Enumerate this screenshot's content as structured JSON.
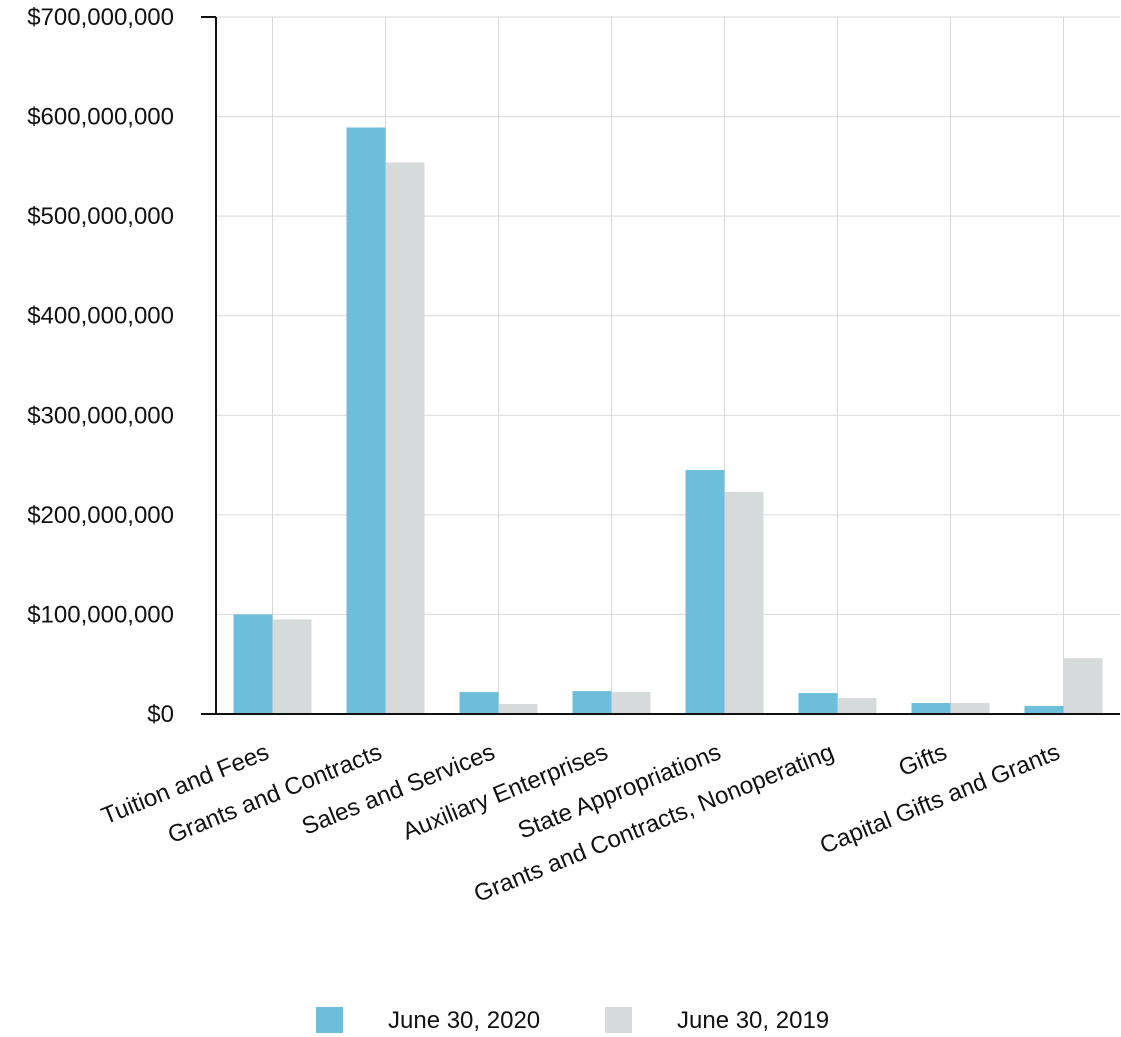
{
  "chart_data": {
    "type": "bar",
    "categories": [
      "Tuition and Fees",
      "Grants and Contracts",
      "Sales and Services",
      "Auxiliary Enterprises",
      "State Appropriations",
      "Grants and Contracts, Nonoperating",
      "Gifts",
      "Capital Gifts and Grants"
    ],
    "series": [
      {
        "name": "June 30, 2020",
        "color": "#6dbedb",
        "values": [
          100000000,
          589000000,
          22000000,
          23000000,
          245000000,
          21000000,
          11000000,
          8000000
        ]
      },
      {
        "name": "June 30, 2019",
        "color": "#d7dadb",
        "values": [
          95000000,
          554000000,
          10000000,
          22000000,
          223000000,
          16000000,
          11000000,
          56000000
        ]
      }
    ],
    "y_ticks": [
      "$0",
      "$100,000,000",
      "$200,000,000",
      "$300,000,000",
      "$400,000,000",
      "$500,000,000",
      "$600,000,000",
      "$700,000,000"
    ],
    "y_tick_values": [
      0,
      100000000,
      200000000,
      300000000,
      400000000,
      500000000,
      600000000,
      700000000
    ],
    "ylim": [
      0,
      700000000
    ],
    "grid": true,
    "legend_position": "bottom"
  }
}
